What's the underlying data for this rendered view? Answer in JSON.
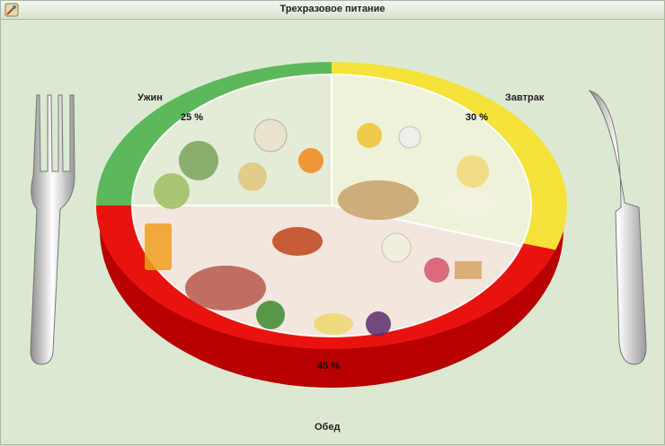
{
  "window": {
    "title": "Трехразовое питание"
  },
  "meals": [
    {
      "name": "Ужин",
      "percent": "25 %",
      "color": "#5cb85a"
    },
    {
      "name": "Завтрак",
      "percent": "30 %",
      "color": "#f5e23a"
    },
    {
      "name": "Обед",
      "percent": "45 %",
      "color": "#e8130f"
    }
  ],
  "chart_data": {
    "type": "pie",
    "categories": [
      "Ужин",
      "Завтрак",
      "Обед"
    ],
    "values": [
      25,
      30,
      45
    ],
    "colors": [
      "#5cb85a",
      "#f5e23a",
      "#e8130f"
    ]
  },
  "icons": {
    "app": "app-icon",
    "fork": "fork-icon",
    "knife": "knife-icon",
    "food": "food-collage-icon"
  }
}
